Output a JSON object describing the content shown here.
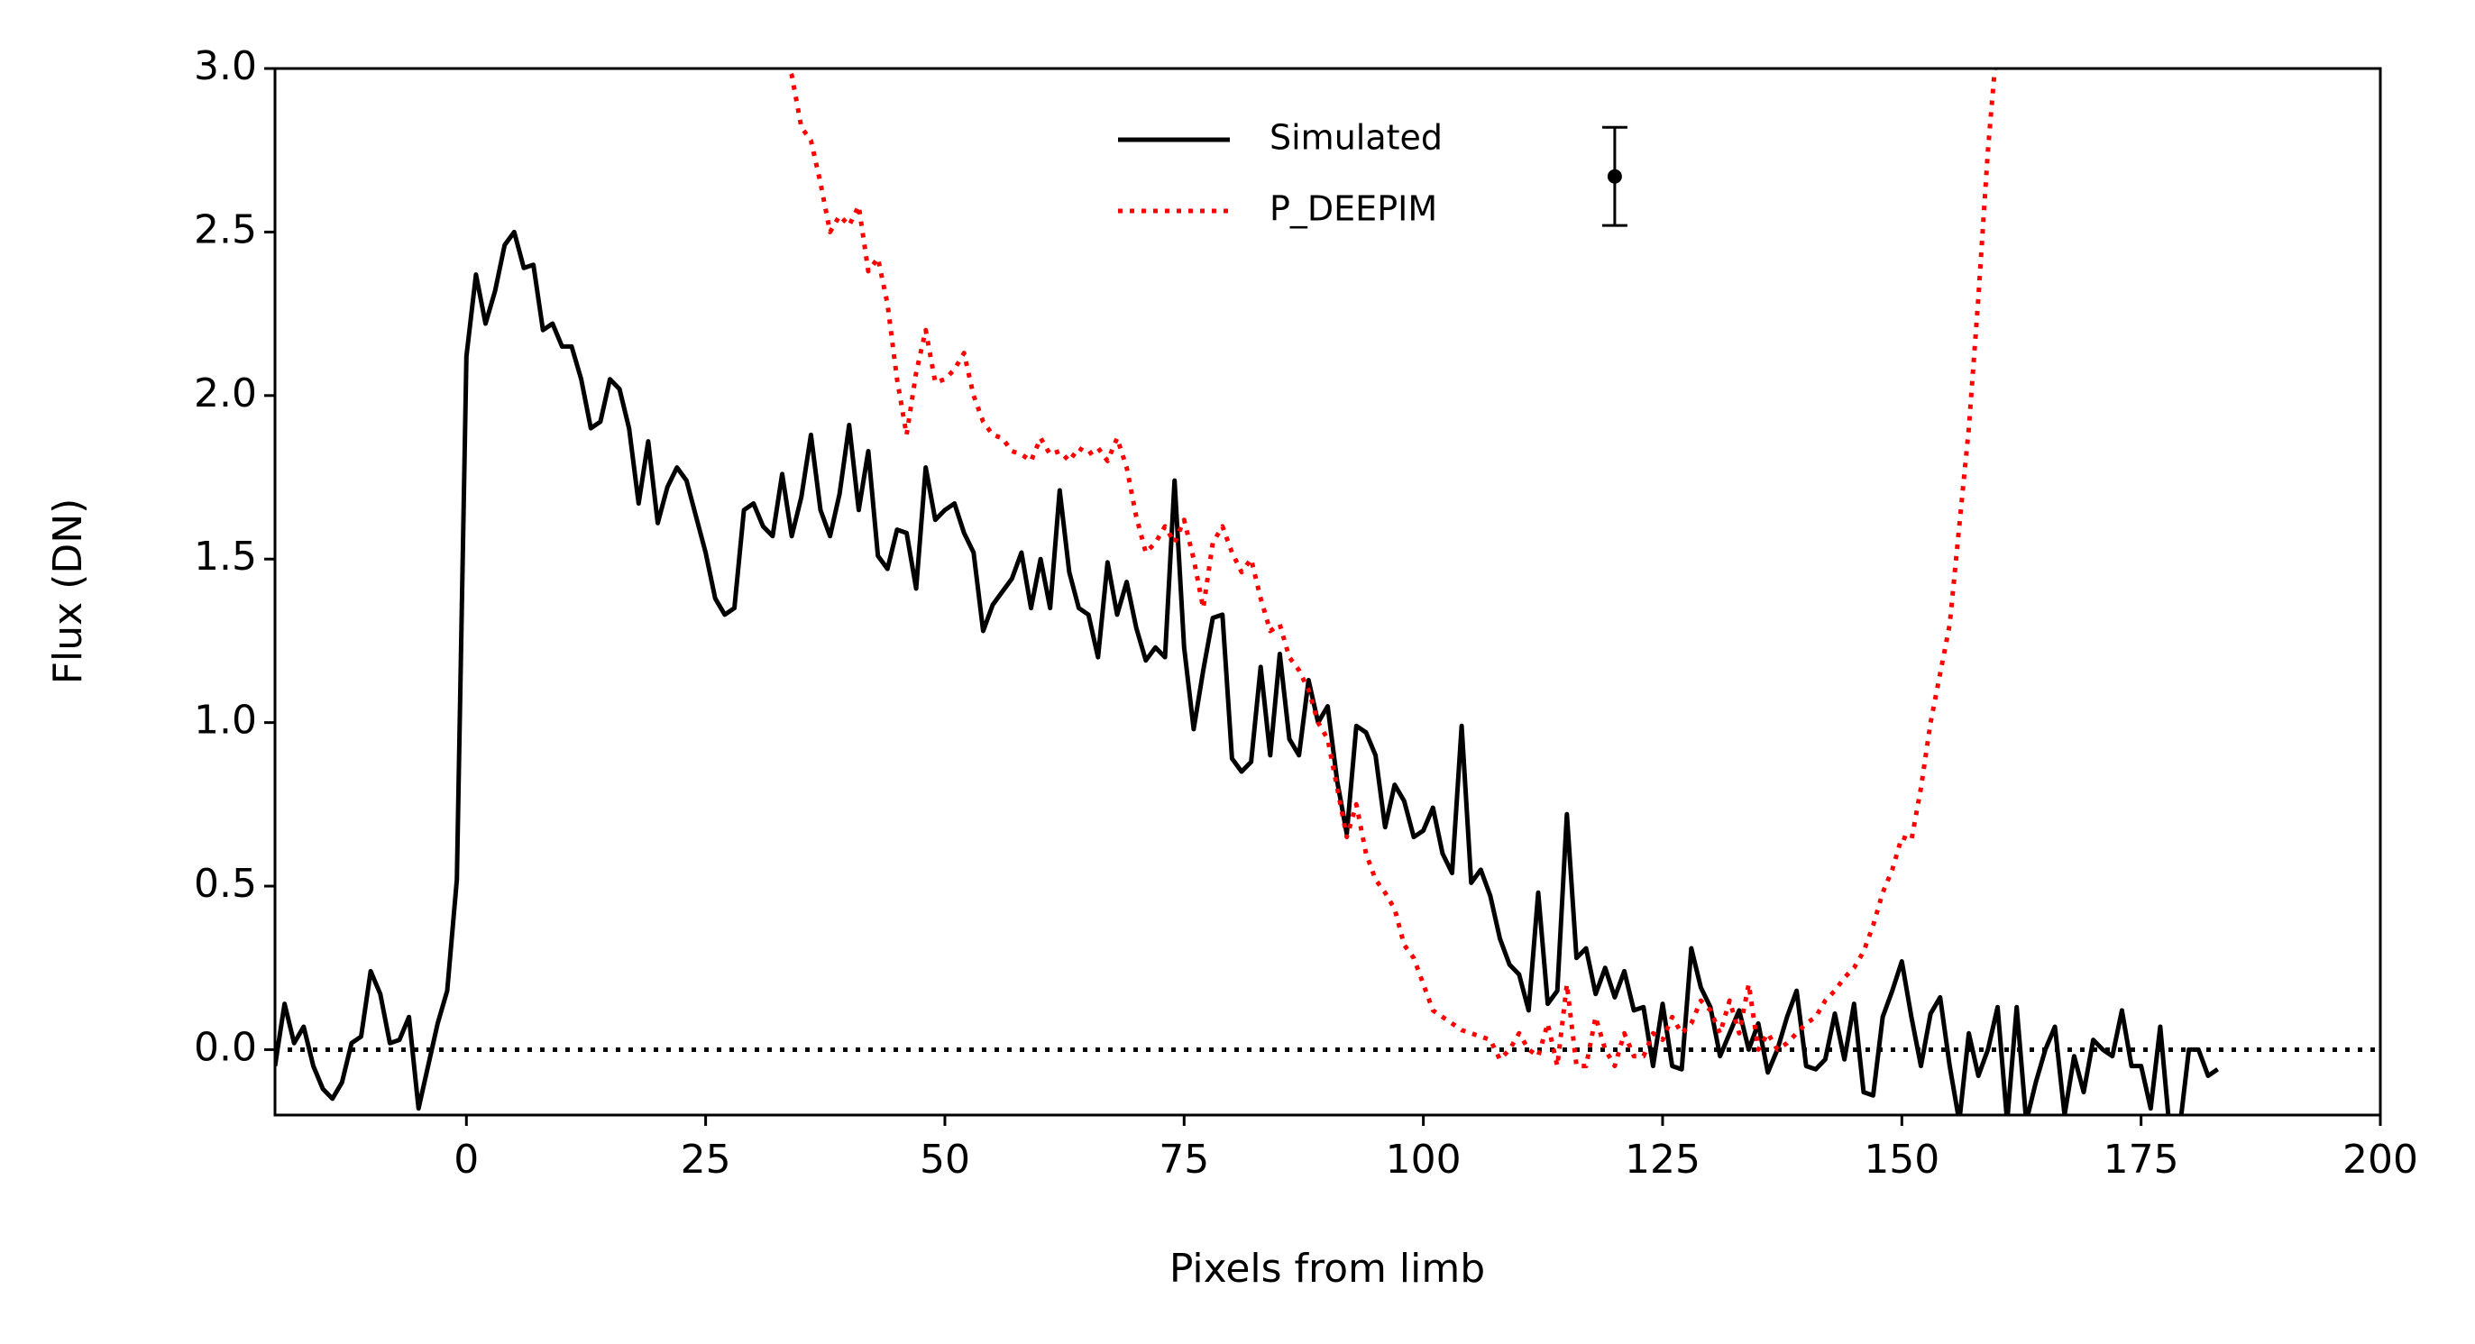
{
  "chart_data": {
    "type": "line",
    "xlabel": "Pixels from limb",
    "ylabel": "Flux (DN)",
    "xlim": [
      -20,
      200
    ],
    "xticks": [
      0,
      25,
      50,
      75,
      100,
      125,
      150,
      175,
      200
    ],
    "ylim": [
      -0.2,
      3.0
    ],
    "yticks": [
      {
        "value": 0,
        "label": "0.0"
      },
      {
        "value": 0.5,
        "label": "0.5"
      },
      {
        "value": 1,
        "label": "1.0"
      },
      {
        "value": 1.5,
        "label": "1.5"
      },
      {
        "value": 2,
        "label": "2.0"
      },
      {
        "value": 2.5,
        "label": "2.5"
      },
      {
        "value": 3,
        "label": "3.0"
      }
    ],
    "hline": 0,
    "error_bar": {
      "x": 120,
      "y": 2.67,
      "error": 0.15
    },
    "series": [
      {
        "name": "Simulated",
        "color": "#000000",
        "style": "solid",
        "x": [
          -20,
          -19,
          -18,
          -17,
          -16,
          -15,
          -14,
          -13,
          -12,
          -11,
          -10,
          -9,
          -8,
          -7,
          -6,
          -5,
          -4,
          -3,
          -2,
          -1,
          0,
          1,
          2,
          3,
          4,
          5,
          6,
          7,
          8,
          9,
          10,
          11,
          12,
          13,
          14,
          15,
          16,
          17,
          18,
          19,
          20,
          21,
          22,
          23,
          24,
          25,
          26,
          27,
          28,
          29,
          30,
          31,
          32,
          33,
          34,
          35,
          36,
          37,
          38,
          39,
          40,
          41,
          42,
          43,
          44,
          45,
          46,
          47,
          48,
          49,
          50,
          51,
          52,
          53,
          54,
          55,
          56,
          57,
          58,
          59,
          60,
          61,
          62,
          63,
          64,
          65,
          66,
          67,
          68,
          69,
          70,
          71,
          72,
          73,
          74,
          75,
          76,
          77,
          78,
          79,
          80,
          81,
          82,
          83,
          84,
          85,
          86,
          87,
          88,
          89,
          90,
          91,
          92,
          93,
          94,
          95,
          96,
          97,
          98,
          99,
          100,
          101,
          102,
          103,
          104,
          105,
          106,
          107,
          108,
          109,
          110,
          111,
          112,
          113,
          114,
          115,
          116,
          117,
          118,
          119,
          120,
          121,
          122,
          123,
          124,
          125,
          126,
          127,
          128,
          129,
          130,
          131,
          132,
          133,
          134,
          135,
          136,
          137,
          138,
          139,
          140,
          141,
          142,
          143,
          144,
          145,
          146,
          147,
          148,
          149,
          150,
          151,
          152,
          153,
          154,
          155,
          156,
          157,
          158,
          159,
          160,
          161,
          162,
          163,
          164,
          165,
          166,
          167,
          168,
          169,
          170,
          171,
          172,
          173,
          174,
          175,
          176,
          177,
          178,
          179,
          180,
          181,
          182,
          183
        ],
        "values": [
          -0.05,
          0.14,
          0.02,
          0.07,
          -0.05,
          -0.12,
          -0.15,
          -0.1,
          0.02,
          0.04,
          0.24,
          0.17,
          0.02,
          0.03,
          0.1,
          -0.18,
          -0.05,
          0.08,
          0.18,
          0.52,
          2.12,
          2.37,
          2.22,
          2.32,
          2.46,
          2.5,
          2.39,
          2.4,
          2.2,
          2.22,
          2.15,
          2.15,
          2.05,
          1.9,
          1.92,
          2.05,
          2.02,
          1.9,
          1.67,
          1.86,
          1.61,
          1.72,
          1.78,
          1.74,
          1.63,
          1.52,
          1.38,
          1.33,
          1.35,
          1.65,
          1.67,
          1.6,
          1.57,
          1.76,
          1.57,
          1.69,
          1.88,
          1.65,
          1.57,
          1.7,
          1.91,
          1.65,
          1.83,
          1.51,
          1.47,
          1.59,
          1.58,
          1.41,
          1.78,
          1.62,
          1.65,
          1.67,
          1.58,
          1.52,
          1.28,
          1.36,
          1.4,
          1.44,
          1.52,
          1.35,
          1.5,
          1.35,
          1.71,
          1.46,
          1.35,
          1.33,
          1.2,
          1.49,
          1.33,
          1.43,
          1.29,
          1.19,
          1.23,
          1.2,
          1.74,
          1.23,
          0.98,
          1.16,
          1.32,
          1.33,
          0.89,
          0.85,
          0.88,
          1.17,
          0.9,
          1.21,
          0.95,
          0.9,
          1.13,
          1.0,
          1.05,
          0.82,
          0.66,
          0.99,
          0.97,
          0.9,
          0.68,
          0.81,
          0.76,
          0.65,
          0.67,
          0.74,
          0.6,
          0.54,
          0.99,
          0.51,
          0.55,
          0.47,
          0.34,
          0.26,
          0.23,
          0.12,
          0.48,
          0.14,
          0.18,
          0.72,
          0.28,
          0.31,
          0.17,
          0.25,
          0.16,
          0.24,
          0.12,
          0.13,
          -0.05,
          0.14,
          -0.05,
          -0.06,
          0.31,
          0.19,
          0.13,
          -0.02,
          0.05,
          0.12,
          0.0,
          0.08,
          -0.07,
          0.0,
          0.1,
          0.18,
          -0.05,
          -0.06,
          -0.03,
          0.11,
          -0.03,
          0.14,
          -0.13,
          -0.14,
          0.1,
          0.18,
          0.27,
          0.1,
          -0.05,
          0.11,
          0.16,
          -0.05,
          -0.22,
          0.05,
          -0.08,
          0.0,
          0.13,
          -0.22,
          0.13,
          -0.22,
          -0.1,
          0.0,
          0.07,
          -0.2,
          -0.02,
          -0.13,
          0.03,
          0.0,
          -0.02,
          0.12,
          -0.05,
          -0.05,
          -0.18,
          0.07,
          -0.25,
          -0.25,
          0.0,
          0.0,
          -0.08,
          -0.06
        ]
      },
      {
        "name": "P_DEEPIM",
        "color": "#ff0000",
        "style": "dotted",
        "x": [
          33,
          34,
          35,
          36,
          37,
          38,
          39,
          40,
          41,
          42,
          43,
          44,
          45,
          46,
          47,
          48,
          49,
          50,
          51,
          52,
          53,
          54,
          55,
          56,
          57,
          58,
          59,
          60,
          61,
          62,
          63,
          64,
          65,
          66,
          67,
          68,
          69,
          70,
          71,
          72,
          73,
          74,
          75,
          76,
          77,
          78,
          79,
          80,
          81,
          82,
          83,
          84,
          85,
          86,
          87,
          88,
          89,
          90,
          91,
          92,
          93,
          94,
          95,
          96,
          97,
          98,
          99,
          100,
          101,
          102,
          103,
          104,
          105,
          106,
          107,
          108,
          109,
          110,
          111,
          112,
          113,
          114,
          115,
          116,
          117,
          118,
          119,
          120,
          121,
          122,
          123,
          124,
          125,
          126,
          127,
          128,
          129,
          130,
          131,
          132,
          133,
          134,
          135,
          136,
          137,
          138,
          139,
          140,
          141,
          142,
          143,
          144,
          145,
          146,
          147,
          148,
          149,
          150,
          151,
          152,
          153,
          154,
          155,
          156,
          157,
          158,
          159,
          160
        ],
        "values": [
          3.05,
          2.98,
          2.82,
          2.78,
          2.65,
          2.5,
          2.55,
          2.52,
          2.58,
          2.38,
          2.42,
          2.28,
          2.05,
          1.88,
          2.07,
          2.2,
          2.04,
          2.05,
          2.08,
          2.13,
          2.0,
          1.92,
          1.88,
          1.87,
          1.83,
          1.82,
          1.8,
          1.87,
          1.82,
          1.83,
          1.8,
          1.84,
          1.82,
          1.84,
          1.8,
          1.87,
          1.78,
          1.63,
          1.52,
          1.55,
          1.6,
          1.55,
          1.62,
          1.5,
          1.35,
          1.55,
          1.6,
          1.52,
          1.46,
          1.5,
          1.38,
          1.28,
          1.3,
          1.2,
          1.16,
          1.1,
          1.0,
          0.95,
          0.8,
          0.65,
          0.75,
          0.6,
          0.52,
          0.48,
          0.43,
          0.32,
          0.28,
          0.2,
          0.12,
          0.1,
          0.08,
          0.06,
          0.05,
          0.04,
          0.03,
          -0.03,
          0.0,
          0.05,
          0.0,
          -0.02,
          0.08,
          -0.05,
          0.2,
          -0.05,
          -0.05,
          0.1,
          0.0,
          -0.05,
          0.05,
          -0.02,
          -0.02,
          0.05,
          0.03,
          0.1,
          0.05,
          0.08,
          0.15,
          0.12,
          0.05,
          0.15,
          0.05,
          0.2,
          0.0,
          0.05,
          0.0,
          0.02,
          0.05,
          0.08,
          0.1,
          0.15,
          0.18,
          0.22,
          0.25,
          0.3,
          0.38,
          0.48,
          0.55,
          0.65,
          0.64,
          0.8,
          1.0,
          1.15,
          1.3,
          1.6,
          1.9,
          2.3,
          2.75,
          3.1
        ]
      }
    ]
  }
}
